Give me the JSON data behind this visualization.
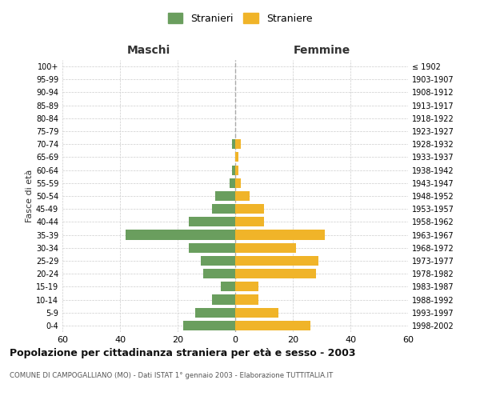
{
  "age_groups": [
    "0-4",
    "5-9",
    "10-14",
    "15-19",
    "20-24",
    "25-29",
    "30-34",
    "35-39",
    "40-44",
    "45-49",
    "50-54",
    "55-59",
    "60-64",
    "65-69",
    "70-74",
    "75-79",
    "80-84",
    "85-89",
    "90-94",
    "95-99",
    "100+"
  ],
  "birth_years": [
    "1998-2002",
    "1993-1997",
    "1988-1992",
    "1983-1987",
    "1978-1982",
    "1973-1977",
    "1968-1972",
    "1963-1967",
    "1958-1962",
    "1953-1957",
    "1948-1952",
    "1943-1947",
    "1938-1942",
    "1933-1937",
    "1928-1932",
    "1923-1927",
    "1918-1922",
    "1913-1917",
    "1908-1912",
    "1903-1907",
    "≤ 1902"
  ],
  "maschi": [
    18,
    14,
    8,
    5,
    11,
    12,
    16,
    38,
    16,
    8,
    7,
    2,
    1,
    0,
    1,
    0,
    0,
    0,
    0,
    0,
    0
  ],
  "femmine": [
    26,
    15,
    8,
    8,
    28,
    29,
    21,
    31,
    10,
    10,
    5,
    2,
    1,
    1,
    2,
    0,
    0,
    0,
    0,
    0,
    0
  ],
  "color_maschi": "#6a9e5e",
  "color_femmine": "#f0b429",
  "xlim": 60,
  "title": "Popolazione per cittadinanza straniera per età e sesso - 2003",
  "subtitle": "COMUNE DI CAMPOGALLIANO (MO) - Dati ISTAT 1° gennaio 2003 - Elaborazione TUTTITALIA.IT",
  "ylabel_left": "Fasce di età",
  "xlabel_left": "Maschi",
  "xlabel_right": "Femmine",
  "legend_maschi": "Stranieri",
  "legend_femmine": "Straniere",
  "bg_color": "#ffffff",
  "grid_color": "#cccccc"
}
